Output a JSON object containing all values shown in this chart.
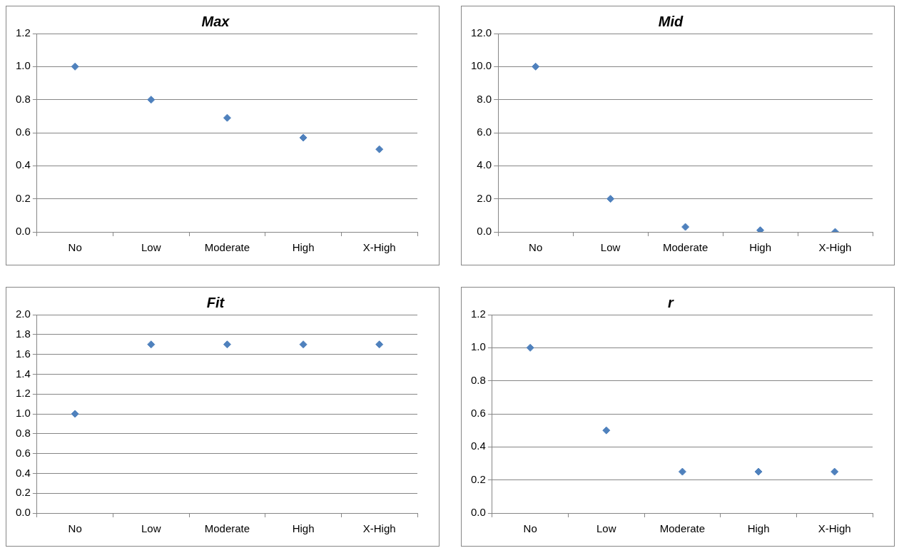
{
  "chart_data": [
    {
      "type": "scatter",
      "title": "Max",
      "categories": [
        "No",
        "Low",
        "Moderate",
        "High",
        "X-High"
      ],
      "values": [
        1.0,
        0.8,
        0.69,
        0.57,
        0.5
      ],
      "color": "#4f81bd",
      "marker": "diamond",
      "ylim": [
        0,
        1.2
      ],
      "yticks": [
        {
          "value": 0,
          "label": "0.0"
        },
        {
          "value": 0.2,
          "label": "0.2"
        },
        {
          "value": 0.4,
          "label": "0.4"
        },
        {
          "value": 0.6,
          "label": "0.6"
        },
        {
          "value": 0.8,
          "label": "0.8"
        },
        {
          "value": 1,
          "label": "1.0"
        },
        {
          "value": 1.2,
          "label": "1.2"
        }
      ],
      "grid": "y",
      "legend": false
    },
    {
      "type": "scatter",
      "title": "Mid",
      "categories": [
        "No",
        "Low",
        "Moderate",
        "High",
        "X-High"
      ],
      "values": [
        10.0,
        2.0,
        0.3,
        0.1,
        0.0
      ],
      "color": "#4f81bd",
      "marker": "diamond",
      "ylim": [
        0,
        12
      ],
      "yticks": [
        {
          "value": 0,
          "label": "0.0"
        },
        {
          "value": 2,
          "label": "2.0"
        },
        {
          "value": 4,
          "label": "4.0"
        },
        {
          "value": 6,
          "label": "6.0"
        },
        {
          "value": 8,
          "label": "8.0"
        },
        {
          "value": 10,
          "label": "10.0"
        },
        {
          "value": 12,
          "label": "12.0"
        }
      ],
      "grid": "y",
      "legend": false
    },
    {
      "type": "scatter",
      "title": "Fit",
      "categories": [
        "No",
        "Low",
        "Moderate",
        "High",
        "X-High"
      ],
      "values": [
        1.0,
        1.7,
        1.7,
        1.7,
        1.7
      ],
      "color": "#4f81bd",
      "marker": "diamond",
      "ylim": [
        0,
        2
      ],
      "yticks": [
        {
          "value": 0,
          "label": "0.0"
        },
        {
          "value": 0.2,
          "label": "0.2"
        },
        {
          "value": 0.4,
          "label": "0.4"
        },
        {
          "value": 0.6,
          "label": "0.6"
        },
        {
          "value": 0.8,
          "label": "0.8"
        },
        {
          "value": 1,
          "label": "1.0"
        },
        {
          "value": 1.2,
          "label": "1.2"
        },
        {
          "value": 1.4,
          "label": "1.4"
        },
        {
          "value": 1.6,
          "label": "1.6"
        },
        {
          "value": 1.8,
          "label": "1.8"
        },
        {
          "value": 2,
          "label": "2.0"
        }
      ],
      "grid": "y",
      "legend": false
    },
    {
      "type": "scatter",
      "title": "r",
      "categories": [
        "No",
        "Low",
        "Moderate",
        "High",
        "X-High"
      ],
      "values": [
        1.0,
        0.5,
        0.25,
        0.25,
        0.25
      ],
      "color": "#4f81bd",
      "marker": "diamond",
      "ylim": [
        0,
        1.2
      ],
      "yticks": [
        {
          "value": 0,
          "label": "0.0"
        },
        {
          "value": 0.2,
          "label": "0.2"
        },
        {
          "value": 0.4,
          "label": "0.4"
        },
        {
          "value": 0.6,
          "label": "0.6"
        },
        {
          "value": 0.8,
          "label": "0.8"
        },
        {
          "value": 1,
          "label": "1.0"
        },
        {
          "value": 1.2,
          "label": "1.2"
        }
      ],
      "grid": "y",
      "legend": false
    }
  ]
}
